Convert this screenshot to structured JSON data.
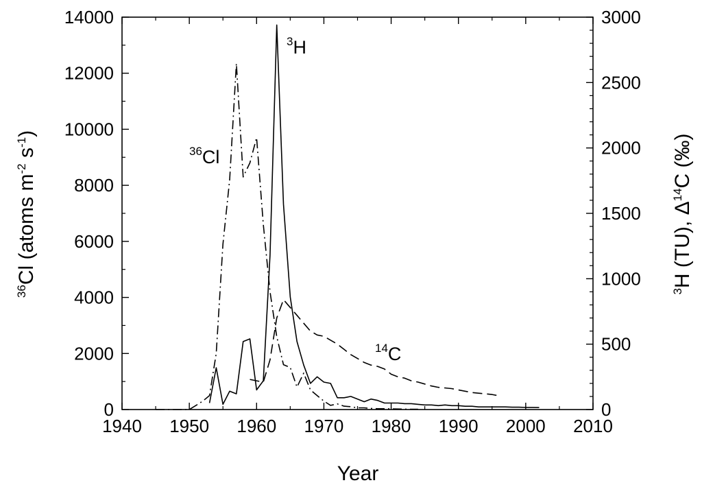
{
  "chart_data": {
    "type": "line",
    "xlabel": "Year",
    "ylabel_left": {
      "sup": "36",
      "text": "Cl (atoms m",
      "sup2": "-2",
      "mid": " s",
      "sup3": "-1",
      "end": ")"
    },
    "ylabel_right": {
      "sup": "3",
      "text": "H (TU), Δ",
      "sup2": "14",
      "end": "C (‰)"
    },
    "xlim": [
      1940,
      2010
    ],
    "ylim_left": [
      0,
      14000
    ],
    "ylim_right": [
      0,
      3000
    ],
    "x_ticks": [
      "1940",
      "1950",
      "1960",
      "1970",
      "1980",
      "1990",
      "2000",
      "2010"
    ],
    "y_left_ticks": [
      "0",
      "2000",
      "4000",
      "6000",
      "8000",
      "10000",
      "12000",
      "14000"
    ],
    "y_right_ticks": [
      "0",
      "500",
      "1000",
      "1500",
      "2000",
      "2500",
      "3000"
    ],
    "grid": false,
    "annotations": {
      "cl36": {
        "sup": "36",
        "text": "Cl"
      },
      "h3": {
        "sup": "3",
        "text": "H"
      },
      "c14": {
        "sup": "14",
        "text": "C"
      }
    },
    "series": [
      {
        "id": "cl36",
        "axis": "left",
        "style": "dashdot",
        "x": [
          1945,
          1950,
          1951,
          1952,
          1953,
          1954,
          1955,
          1956,
          1957,
          1958,
          1959,
          1960,
          1961,
          1962,
          1963,
          1964,
          1965,
          1966,
          1967,
          1968,
          1969,
          1970,
          1971,
          1972,
          1973,
          1974,
          1975,
          1976,
          1977,
          1978,
          1979,
          1980,
          1981,
          1982,
          1983,
          1984
        ],
        "y": [
          0,
          0,
          150,
          300,
          500,
          2000,
          5900,
          8200,
          12350,
          8300,
          8800,
          9700,
          6600,
          4200,
          2600,
          1600,
          1500,
          800,
          1300,
          700,
          500,
          300,
          150,
          200,
          120,
          100,
          60,
          60,
          40,
          30,
          30,
          25,
          20,
          15,
          10,
          10
        ]
      },
      {
        "id": "h3",
        "axis": "right",
        "style": "solid",
        "x": [
          1953,
          1954,
          1955,
          1956,
          1957,
          1958,
          1959,
          1960,
          1961,
          1962,
          1963,
          1964,
          1965,
          1966,
          1967,
          1968,
          1969,
          1970,
          1971,
          1972,
          1973,
          1974,
          1975,
          1976,
          1977,
          1978,
          1979,
          1980,
          1981,
          1982,
          1983,
          1984,
          1985,
          1986,
          1987,
          1988,
          1989,
          1990,
          1991,
          1992,
          1993,
          1994,
          1995,
          1996,
          1997,
          1998,
          1999,
          2000,
          2001,
          2002
        ],
        "y": [
          50,
          320,
          40,
          140,
          120,
          520,
          540,
          150,
          220,
          1180,
          2940,
          1570,
          860,
          520,
          340,
          200,
          250,
          210,
          200,
          90,
          90,
          100,
          80,
          60,
          80,
          70,
          50,
          50,
          50,
          45,
          45,
          40,
          35,
          35,
          30,
          35,
          30,
          30,
          25,
          25,
          20,
          20,
          20,
          20,
          20,
          18,
          18,
          16,
          16,
          15
        ]
      },
      {
        "id": "c14",
        "axis": "right",
        "style": "dashed",
        "x": [
          1959,
          1960,
          1961,
          1962,
          1963,
          1964,
          1965,
          1966,
          1967,
          1968,
          1969,
          1970,
          1971,
          1972,
          1973,
          1974,
          1975,
          1976,
          1977,
          1978,
          1979,
          1980,
          1981,
          1982,
          1983,
          1984,
          1985,
          1986,
          1987,
          1988,
          1989,
          1990,
          1991,
          1992,
          1993,
          1994,
          1995,
          1996
        ],
        "y": [
          230,
          220,
          210,
          380,
          700,
          840,
          780,
          720,
          660,
          600,
          570,
          560,
          530,
          500,
          460,
          420,
          390,
          360,
          340,
          330,
          310,
          270,
          250,
          240,
          220,
          210,
          195,
          180,
          170,
          165,
          160,
          150,
          140,
          130,
          125,
          120,
          115,
          105
        ]
      }
    ]
  }
}
